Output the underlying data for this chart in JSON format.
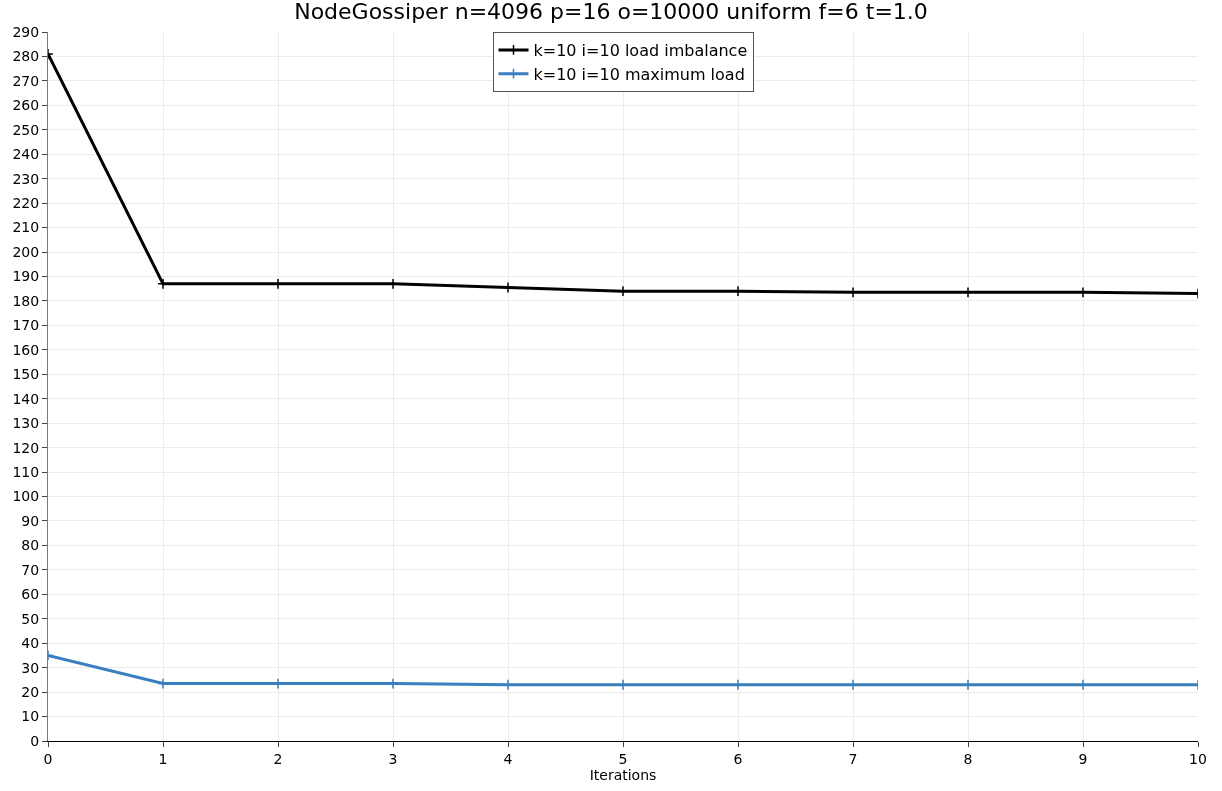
{
  "chart_data": {
    "type": "line",
    "title": "NodeGossiper n=4096 p=16 o=10000 uniform f=6 t=1.0",
    "xlabel": "Iterations",
    "x": [
      0,
      1,
      2,
      3,
      4,
      5,
      6,
      7,
      8,
      9,
      10
    ],
    "series": [
      {
        "name": "k=10 i=10 load imbalance",
        "color": "#000000",
        "values": [
          281,
          187,
          187,
          187,
          185.5,
          184,
          184,
          183.5,
          183.5,
          183.5,
          183
        ]
      },
      {
        "name": "k=10 i=10 maximum load",
        "color": "#3a7ebf",
        "values": [
          35,
          23.5,
          23.5,
          23.5,
          23,
          23,
          23,
          23,
          23,
          23,
          23
        ]
      }
    ],
    "xlim": [
      0,
      10
    ],
    "xticks": [
      0,
      1,
      2,
      3,
      4,
      5,
      6,
      7,
      8,
      9,
      10
    ],
    "ylim": [
      0,
      290
    ],
    "yticks": [
      0,
      10,
      20,
      30,
      40,
      50,
      60,
      70,
      80,
      90,
      100,
      110,
      120,
      130,
      140,
      150,
      160,
      170,
      180,
      190,
      200,
      210,
      220,
      230,
      240,
      250,
      260,
      270,
      280,
      290
    ],
    "grid": true,
    "legend": "top",
    "marker": "cross",
    "line_style": "solid"
  }
}
